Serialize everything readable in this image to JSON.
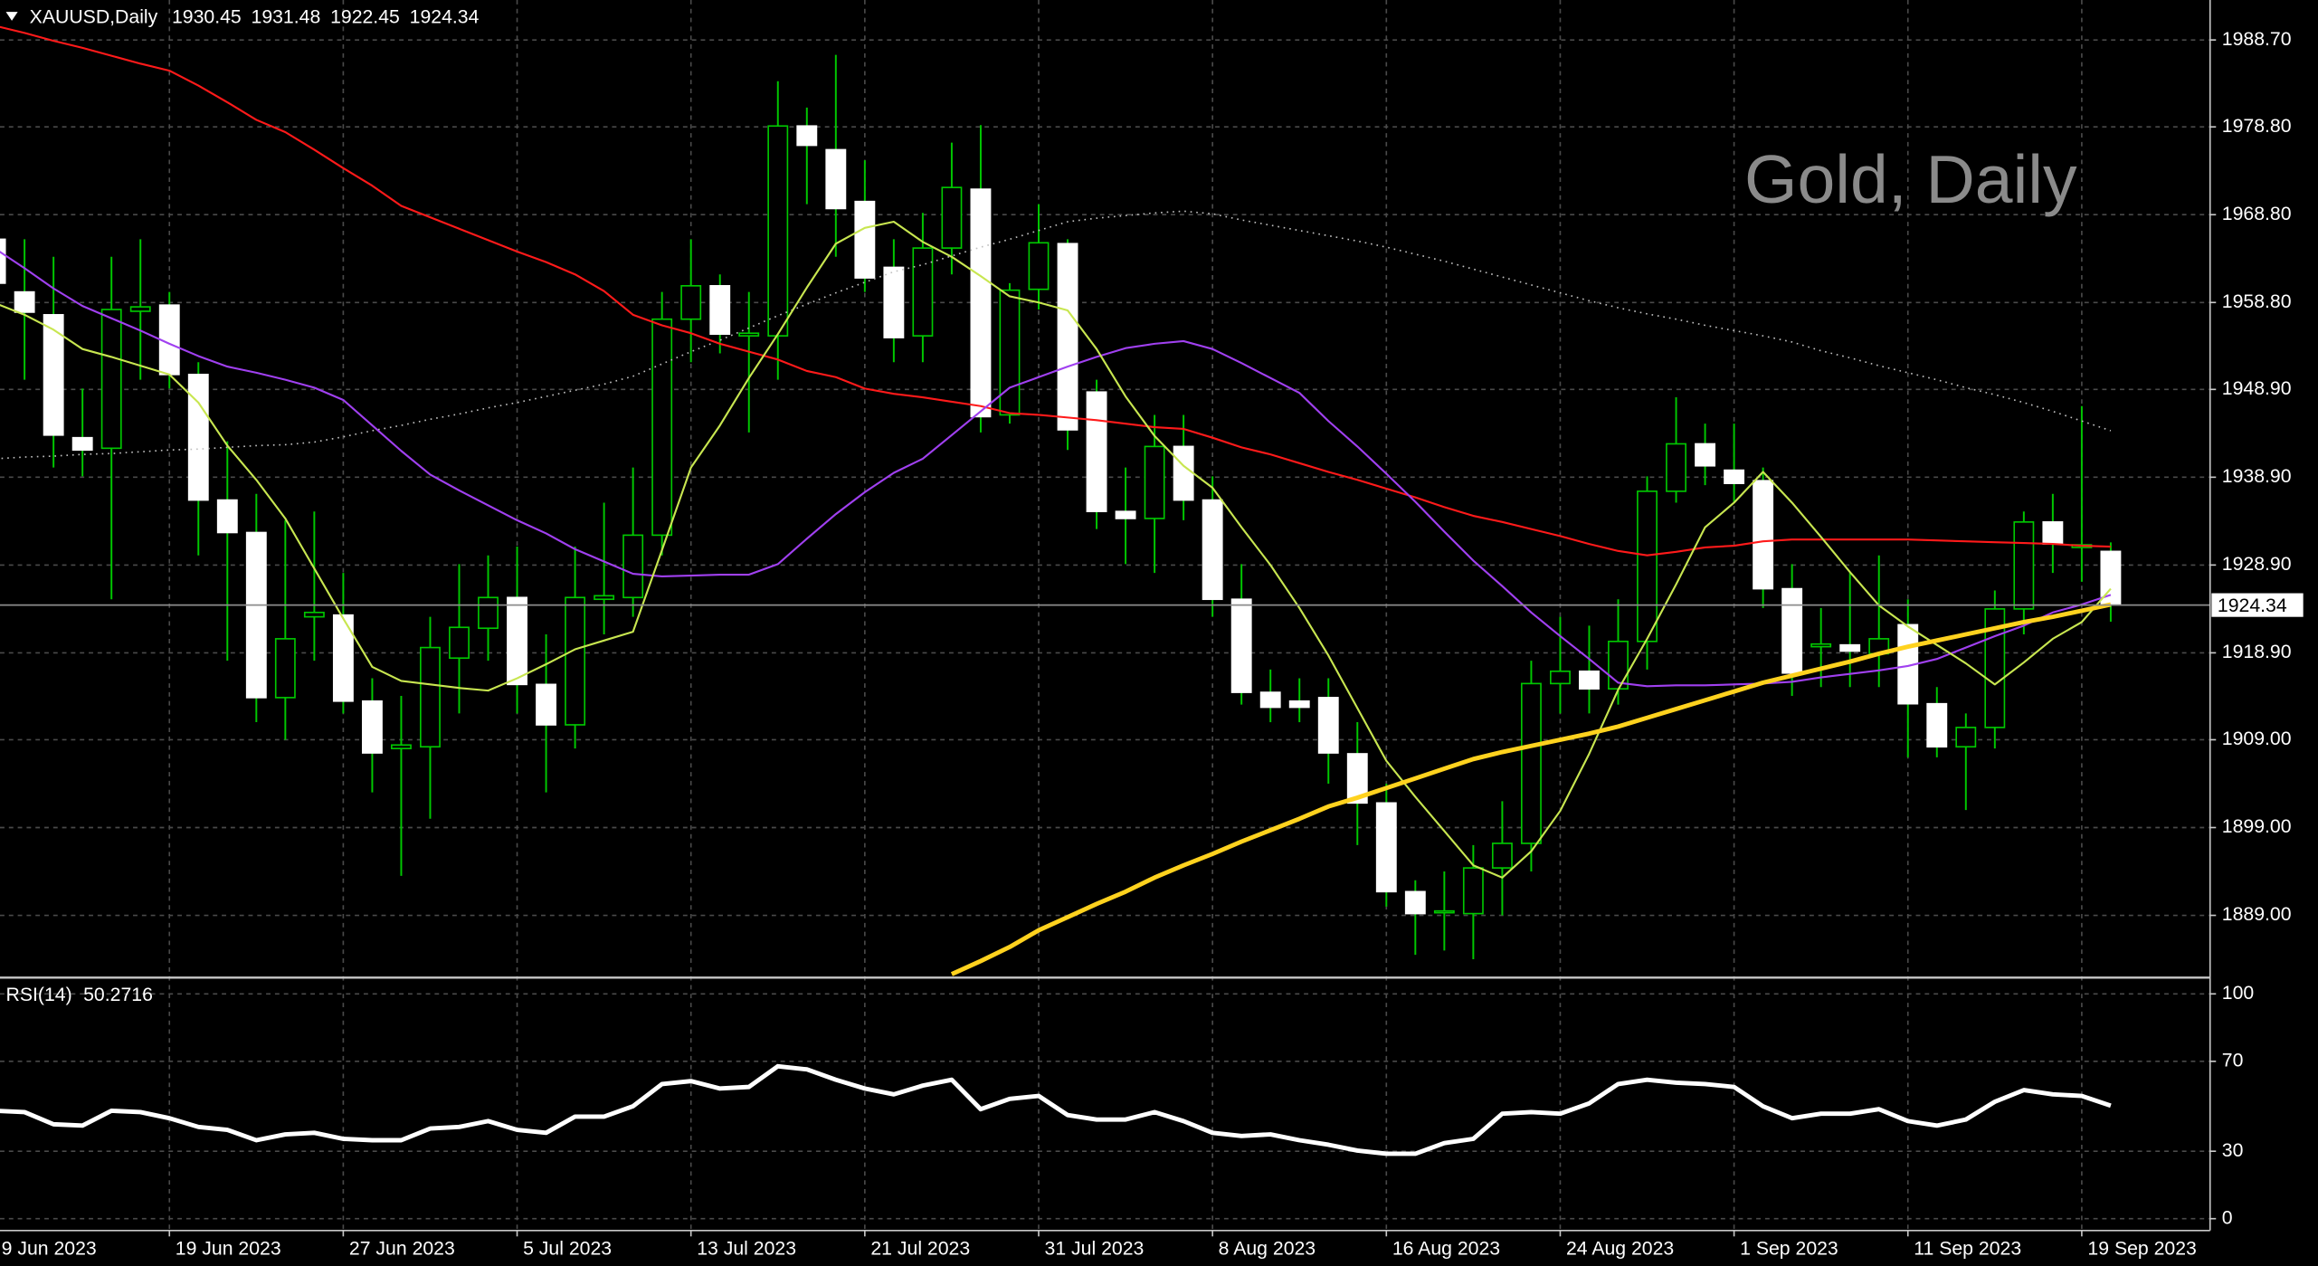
{
  "chart_data": [
    {
      "type": "candlestick",
      "symbol": "XAUUSD,Daily",
      "watermark": "Gold, Daily",
      "categories": [
        "9 Jun 2023",
        null,
        null,
        null,
        null,
        null,
        "19 Jun 2023",
        null,
        null,
        null,
        null,
        null,
        "27 Jun 2023",
        null,
        null,
        null,
        null,
        null,
        "5 Jul 2023",
        null,
        null,
        null,
        null,
        null,
        "13 Jul 2023",
        null,
        null,
        null,
        null,
        null,
        "21 Jul 2023",
        null,
        null,
        null,
        null,
        null,
        "31 Jul 2023",
        null,
        null,
        null,
        null,
        null,
        "8 Aug 2023",
        null,
        null,
        null,
        null,
        null,
        "16 Aug 2023",
        null,
        null,
        null,
        null,
        null,
        "24 Aug 2023",
        null,
        null,
        null,
        null,
        null,
        "1 Sep 2023",
        null,
        null,
        null,
        null,
        null,
        "11 Sep 2023",
        null,
        null,
        null,
        null,
        null,
        "19 Sep 2023",
        null
      ],
      "open": [
        1966,
        1960,
        1957.4,
        1943.4,
        1942.2,
        1957.8,
        1958.5,
        1950.6,
        1936.3,
        1932.6,
        1913.8,
        1923,
        1923.2,
        1913.4,
        1908,
        1908.2,
        1918.3,
        1921.7,
        1925.2,
        1915.3,
        1910.7,
        1925,
        1925.2,
        1932.3,
        1956.9,
        1960.7,
        1955,
        1955,
        1978.9,
        1976.2,
        1970.3,
        1962.8,
        1955,
        1965,
        1971.7,
        1946,
        1960.3,
        1965.5,
        1948.6,
        1935,
        1934.2,
        1942.4,
        1936.3,
        1925,
        1914.4,
        1913.4,
        1913.8,
        1907.4,
        1901.8,
        1891.7,
        1889.3,
        1889.2,
        1894.4,
        1897.2,
        1915.4,
        1916.8,
        1914.8,
        1920.2,
        1937.3,
        1942.7,
        1939.7,
        1938.5,
        1926.2,
        1919.6,
        1919.8,
        1918.8,
        1922.1,
        1913.1,
        1908.2,
        1910.4,
        1923.9,
        1933.8,
        1930.9,
        1930.45
      ],
      "high": [
        1973,
        1966,
        1964,
        1949,
        1964,
        1966,
        1960,
        1952,
        1943,
        1937,
        1934,
        1935,
        1928,
        1916,
        1914,
        1923,
        1929,
        1930,
        1931,
        1921,
        1931,
        1936,
        1940,
        1960,
        1966,
        1962,
        1960,
        1984,
        1981,
        1987,
        1975,
        1966,
        1969,
        1977,
        1979,
        1961,
        1970,
        1966,
        1950,
        1940,
        1946,
        1946,
        1939,
        1929,
        1917,
        1916,
        1916,
        1911,
        1904,
        1893,
        1894,
        1897,
        1902,
        1918,
        1923,
        1922,
        1925,
        1939,
        1948,
        1945,
        1945,
        1940,
        1929,
        1924,
        1928,
        1930,
        1925,
        1915,
        1912,
        1926,
        1935,
        1937,
        1947,
        1931.48
      ],
      "low": [
        1958,
        1950,
        1940,
        1939,
        1925,
        1950,
        1949,
        1930,
        1918,
        1911,
        1909,
        1918,
        1912,
        1903,
        1893.5,
        1900,
        1912,
        1918,
        1912,
        1903,
        1908,
        1921,
        1923,
        1930,
        1952,
        1953,
        1944,
        1950,
        1970,
        1964,
        1960,
        1952,
        1952,
        1962,
        1944,
        1945,
        1958,
        1942,
        1933,
        1929,
        1928,
        1934,
        1923,
        1913,
        1911,
        1911,
        1904,
        1897,
        1890,
        1884.5,
        1885,
        1884,
        1889,
        1894,
        1912,
        1912,
        1913,
        1917,
        1936,
        1938,
        1936,
        1924,
        1914,
        1915,
        1915,
        1915,
        1907,
        1907,
        1901,
        1908,
        1921,
        1928,
        1927,
        1922.45
      ],
      "close": [
        1961,
        1957.7,
        1943.7,
        1942,
        1958,
        1958.3,
        1950.6,
        1936.3,
        1932.6,
        1913.8,
        1920.5,
        1923.5,
        1913.4,
        1907.5,
        1908.4,
        1919.5,
        1921.8,
        1925.2,
        1915.3,
        1910.7,
        1925.2,
        1925.4,
        1932.3,
        1956.9,
        1960.7,
        1955.2,
        1955.3,
        1978.9,
        1976.7,
        1969.5,
        1961.6,
        1954.8,
        1965,
        1971.9,
        1945.8,
        1960.2,
        1965.6,
        1944.3,
        1935,
        1934.2,
        1942.4,
        1936.3,
        1925,
        1914.4,
        1912.7,
        1912.7,
        1907.5,
        1901.8,
        1891.7,
        1889.2,
        1889.5,
        1894.4,
        1897.2,
        1915.4,
        1916.8,
        1914.8,
        1920.2,
        1937.3,
        1942.7,
        1940.2,
        1938.2,
        1926.2,
        1916.6,
        1919.9,
        1919.1,
        1920.5,
        1913.1,
        1908.2,
        1910.4,
        1923.9,
        1933.8,
        1931.3,
        1931.2,
        1924.34
      ],
      "up_color": "#00c800",
      "down_color": "#ffffff",
      "series": [
        {
          "color": "#c0c0c0",
          "style": "dotted",
          "values": [
            1941.0,
            1941.2,
            1941.3,
            1941.5,
            1941.6,
            1941.8,
            1942.0,
            1942.1,
            1942.3,
            1942.5,
            1942.6,
            1942.9,
            1943.5,
            1944.2,
            1944.8,
            1945.5,
            1946.1,
            1946.8,
            1947.4,
            1948.1,
            1948.8,
            1949.5,
            1950.4,
            1951.8,
            1953.2,
            1954.5,
            1955.9,
            1957.3,
            1958.6,
            1959.9,
            1961.1,
            1962.3,
            1963.1,
            1964.1,
            1965.1,
            1966.0,
            1967.0,
            1968.0,
            1968.4,
            1968.7,
            1969.0,
            1969.2,
            1968.9,
            1968.2,
            1967.6,
            1967.0,
            1966.4,
            1965.8,
            1965.1,
            1964.3,
            1963.5,
            1962.6,
            1961.7,
            1960.8,
            1959.9,
            1959.0,
            1958.2,
            1957.5,
            1956.9,
            1956.2,
            1955.6,
            1955.0,
            1954.3,
            1953.3,
            1952.5,
            1951.6,
            1950.8,
            1950.0,
            1949.1,
            1948.3,
            1947.4,
            1946.4,
            1945.3,
            1944.2
          ]
        },
        {
          "color": "#ff1a1a",
          "style": "solid",
          "values": [
            1990.3,
            1989.5,
            1988.6,
            1987.8,
            1986.9,
            1986.0,
            1985.2,
            1983.5,
            1981.6,
            1979.6,
            1978.2,
            1976.2,
            1974.1,
            1972.1,
            1969.8,
            1968.5,
            1967.2,
            1965.9,
            1964.6,
            1963.4,
            1962.0,
            1960.1,
            1957.4,
            1956.2,
            1955.3,
            1954.1,
            1953.2,
            1952.3,
            1951.0,
            1950.3,
            1949.0,
            1948.4,
            1948.0,
            1947.5,
            1947.0,
            1946.2,
            1946.0,
            1945.7,
            1945.4,
            1945.0,
            1944.6,
            1944.4,
            1943.4,
            1942.3,
            1941.5,
            1940.5,
            1939.5,
            1938.6,
            1937.6,
            1936.6,
            1935.5,
            1934.5,
            1933.8,
            1933.0,
            1932.2,
            1931.3,
            1930.5,
            1930.0,
            1930.4,
            1930.9,
            1931.1,
            1931.6,
            1931.8,
            1931.8,
            1931.8,
            1931.8,
            1931.8,
            1931.7,
            1931.6,
            1931.5,
            1931.4,
            1931.3,
            1931.1,
            1931.0
          ]
        },
        {
          "color": "#a040f0",
          "style": "solid",
          "values": [
            1964.9,
            1962.7,
            1960.4,
            1958.4,
            1957.0,
            1955.6,
            1954.1,
            1952.7,
            1951.5,
            1950.8,
            1950.0,
            1949.1,
            1947.7,
            1944.8,
            1941.9,
            1939.2,
            1937.4,
            1935.7,
            1934.0,
            1932.5,
            1930.7,
            1929.3,
            1927.9,
            1927.6,
            1927.7,
            1927.8,
            1927.8,
            1929.0,
            1931.9,
            1934.7,
            1937.2,
            1939.4,
            1941.0,
            1943.7,
            1946.4,
            1949.1,
            1950.3,
            1951.5,
            1952.6,
            1953.6,
            1954.1,
            1954.4,
            1953.5,
            1951.9,
            1950.2,
            1948.5,
            1945.3,
            1942.4,
            1939.3,
            1936.1,
            1932.7,
            1929.4,
            1926.5,
            1923.5,
            1920.8,
            1918.2,
            1915.5,
            1915.1,
            1915.2,
            1915.2,
            1915.3,
            1915.4,
            1915.6,
            1916.1,
            1916.5,
            1916.9,
            1917.4,
            1918.2,
            1919.5,
            1920.8,
            1922.0,
            1923.5,
            1924.4,
            1925.5
          ]
        },
        {
          "color": "#c8e650",
          "style": "solid",
          "values": [
            1958.7,
            1957.4,
            1955.7,
            1953.5,
            1952.6,
            1951.6,
            1950.6,
            1947.4,
            1942.5,
            1938.6,
            1934.2,
            1928.5,
            1922.8,
            1917.3,
            1915.7,
            1915.3,
            1914.9,
            1914.6,
            1916.0,
            1917.6,
            1919.3,
            1920.3,
            1921.3,
            1930.6,
            1940.0,
            1944.8,
            1950.2,
            1955.2,
            1960.5,
            1965.5,
            1967.3,
            1968.0,
            1965.7,
            1964.0,
            1961.8,
            1959.5,
            1958.8,
            1957.9,
            1953.5,
            1948.1,
            1943.6,
            1940.2,
            1937.7,
            1933.2,
            1928.9,
            1924.0,
            1918.6,
            1912.6,
            1906.6,
            1902.5,
            1898.6,
            1894.7,
            1893.3,
            1896.3,
            1900.9,
            1907.4,
            1914.7,
            1920.5,
            1926.7,
            1933.2,
            1936.0,
            1939.5,
            1936.0,
            1932.1,
            1928.1,
            1924.3,
            1921.9,
            1919.8,
            1917.7,
            1915.3,
            1917.8,
            1920.5,
            1922.4,
            1926.2
          ]
        },
        {
          "color": "#ffd21e",
          "style": "thick",
          "values": [
            null,
            null,
            null,
            null,
            null,
            null,
            null,
            null,
            null,
            null,
            null,
            null,
            null,
            null,
            null,
            null,
            null,
            null,
            null,
            null,
            null,
            null,
            null,
            null,
            null,
            null,
            null,
            null,
            null,
            null,
            null,
            null,
            null,
            1882.3,
            1883.8,
            1885.4,
            1887.3,
            1888.8,
            1890.3,
            1891.7,
            1893.3,
            1894.7,
            1896.0,
            1897.4,
            1898.7,
            1900.0,
            1901.4,
            1902.4,
            1903.5,
            1904.6,
            1905.7,
            1906.8,
            1907.6,
            1908.3,
            1909.0,
            1909.7,
            1910.5,
            1911.5,
            1912.5,
            1913.5,
            1914.5,
            1915.5,
            1916.3,
            1917.1,
            1917.9,
            1918.8,
            1919.6,
            1920.3,
            1921.0,
            1921.7,
            1922.4,
            1923.0,
            1923.7,
            1924.4
          ]
        }
      ],
      "ylim": [
        1882.08,
        1993.25
      ],
      "yticks": [
        {
          "value": 1988.7,
          "label": "1988.70"
        },
        {
          "value": 1978.8,
          "label": "1978.80"
        },
        {
          "value": 1968.8,
          "label": "1968.80"
        },
        {
          "value": 1958.8,
          "label": "1958.80"
        },
        {
          "value": 1948.9,
          "label": "1948.90"
        },
        {
          "value": 1938.9,
          "label": "1938.90"
        },
        {
          "value": 1928.9,
          "label": "1928.90"
        },
        {
          "value": 1918.9,
          "label": "1918.90"
        },
        {
          "value": 1909,
          "label": "1909.00"
        },
        {
          "value": 1899,
          "label": "1899.00"
        },
        {
          "value": 1889,
          "label": "1889.00"
        }
      ],
      "grid": true
    },
    {
      "type": "line",
      "title": "RSI(14)",
      "color": "#ffffff",
      "style": "thick",
      "values": [
        48,
        47.4,
        42,
        41.4,
        48,
        47.4,
        44.7,
        40.8,
        39.5,
        34.9,
        37.5,
        38.2,
        35.5,
        34.9,
        34.9,
        40.1,
        40.8,
        43.4,
        39.5,
        38.2,
        45.4,
        45.4,
        50,
        59.9,
        61.2,
        57.9,
        58.6,
        67.8,
        66.4,
        61.8,
        57.9,
        55.3,
        59.2,
        61.8,
        48.7,
        53.3,
        54.6,
        46.1,
        44.1,
        44.1,
        47.4,
        43.4,
        38.2,
        36.8,
        37.5,
        34.9,
        32.9,
        30.3,
        28.9,
        28.9,
        33.6,
        35.5,
        46.7,
        47.4,
        46.7,
        51.3,
        59.9,
        61.8,
        60.5,
        59.9,
        58.6,
        50,
        44.7,
        46.7,
        46.7,
        48.7,
        43.4,
        41.4,
        44.1,
        52,
        57.2,
        55.3,
        54.6,
        50.2716
      ],
      "ylim": [
        0,
        100
      ],
      "yticks": [
        100,
        70,
        30,
        0
      ],
      "grid": true
    }
  ]
}
